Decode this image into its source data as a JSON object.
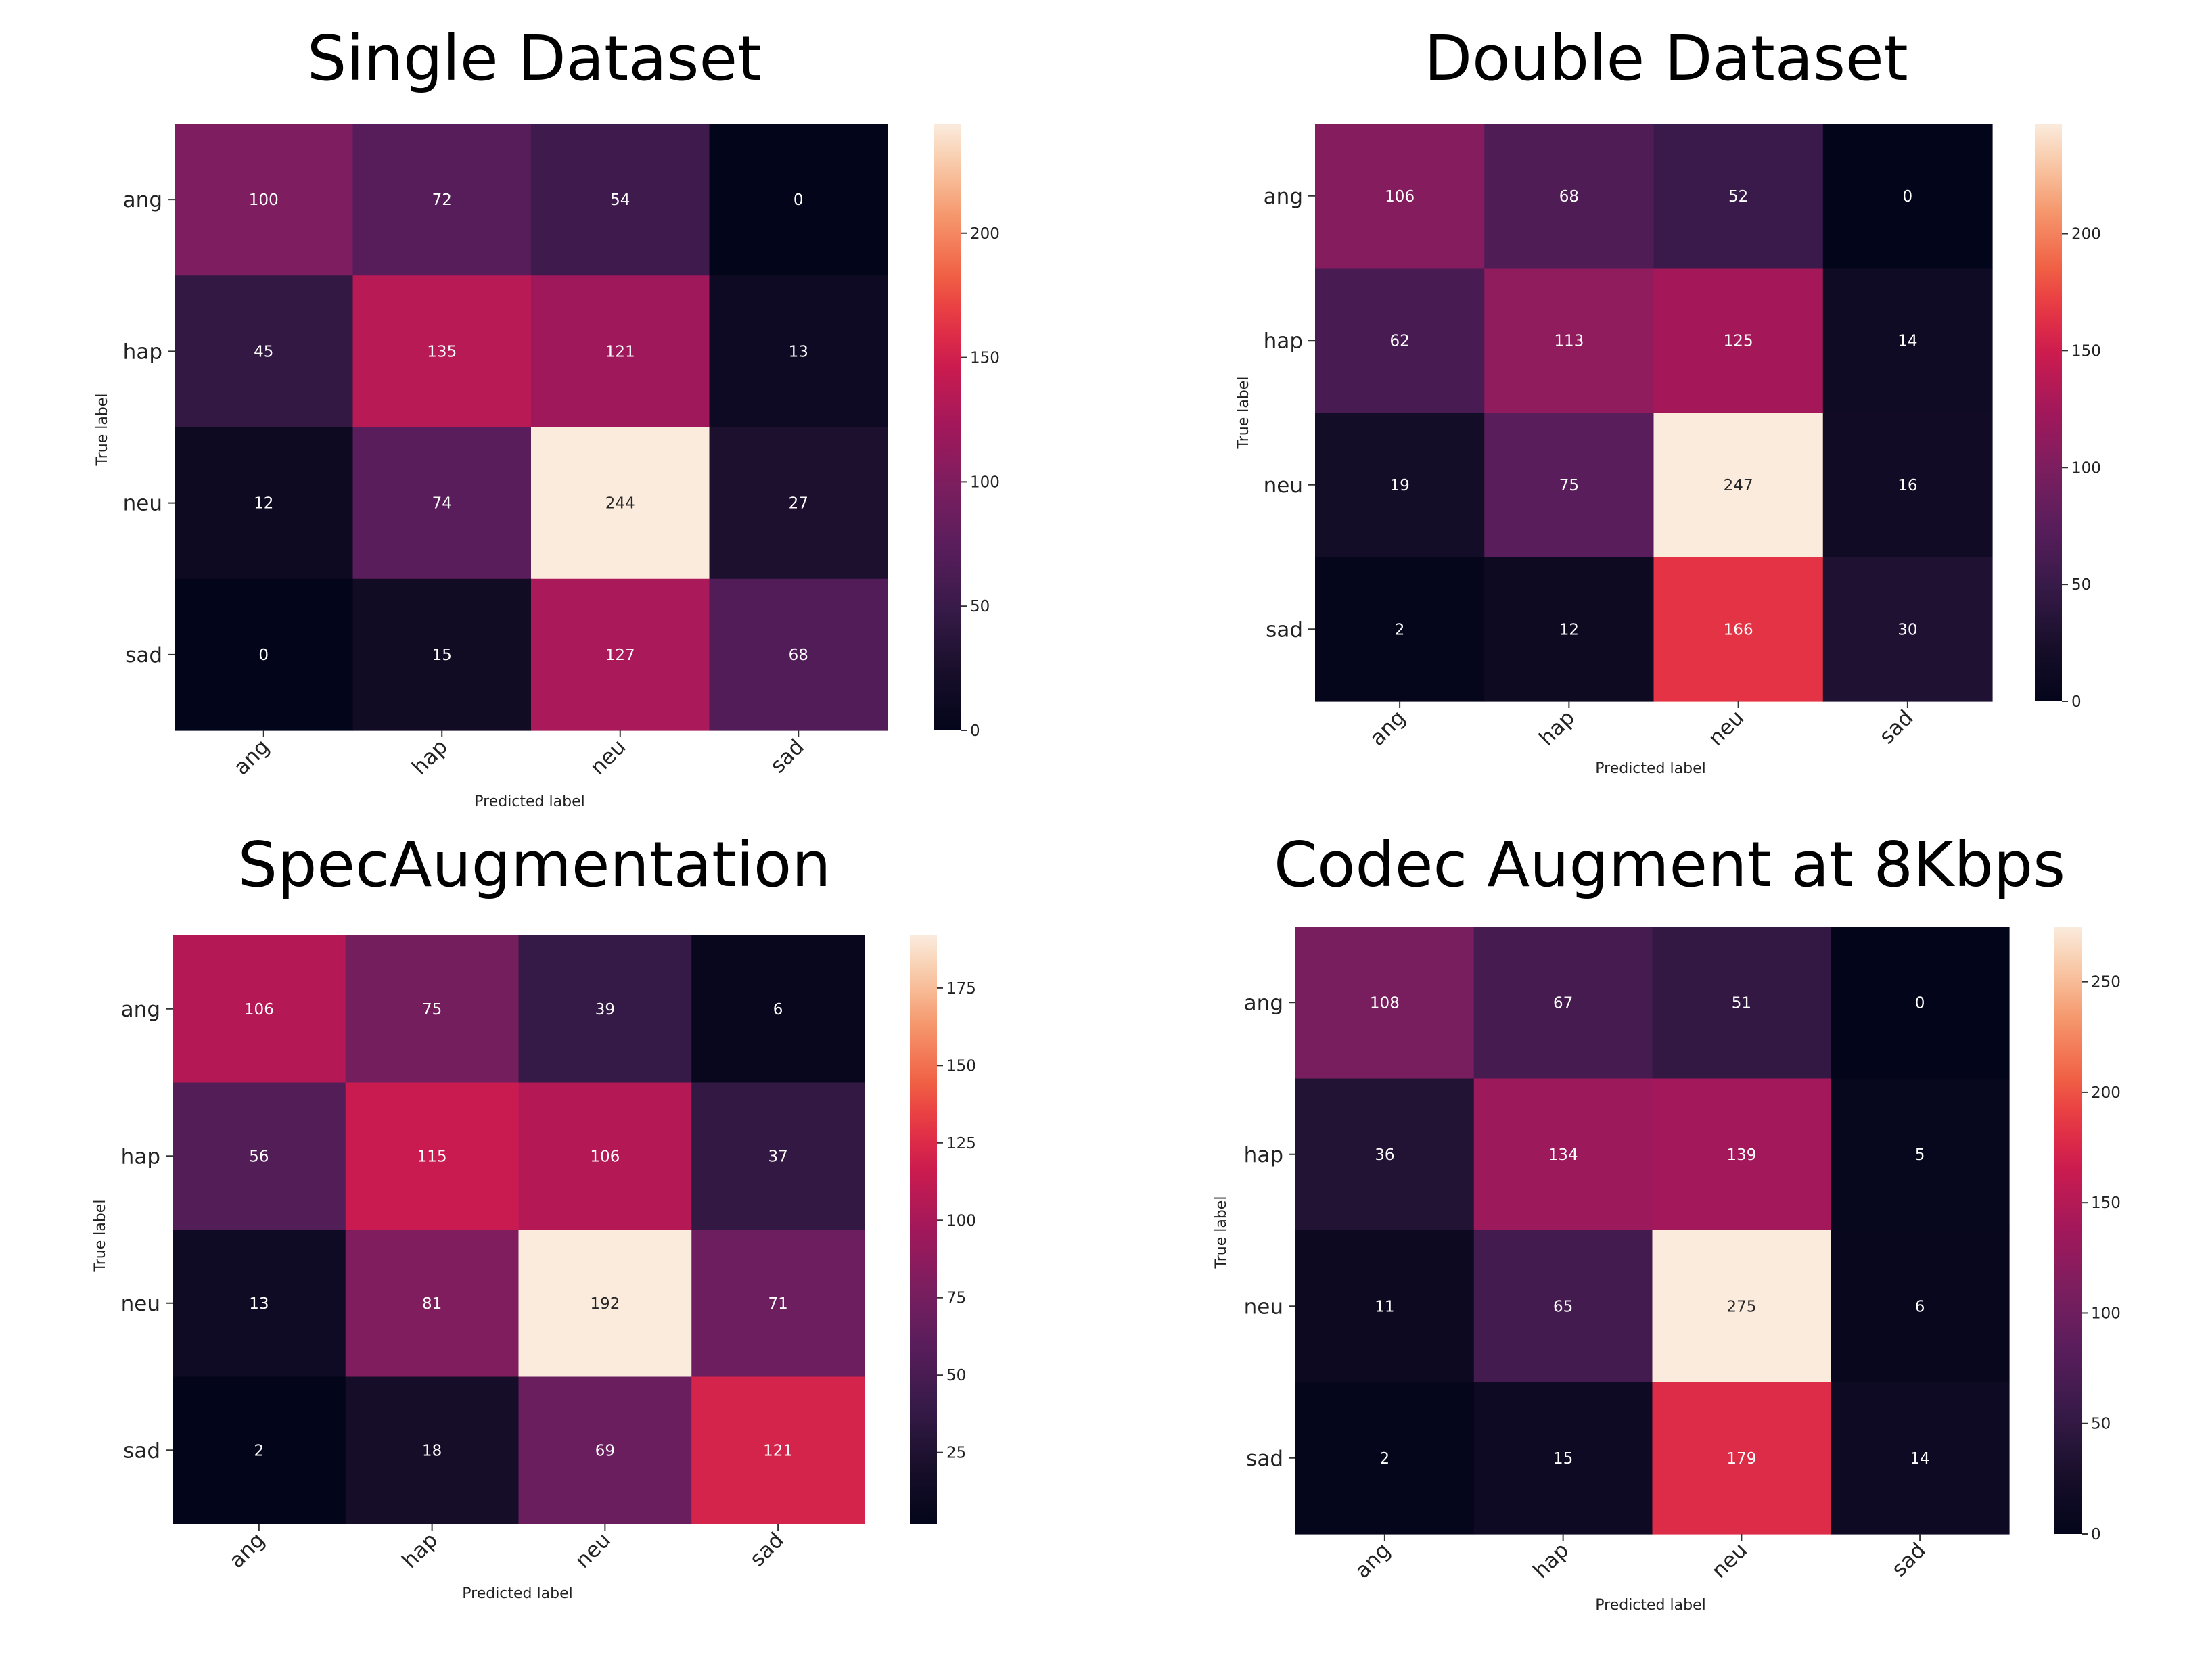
{
  "chart_data": [
    {
      "type": "heatmap",
      "title": "Single Dataset",
      "xlabel": "Predicted label",
      "ylabel": "True label",
      "categories": [
        "ang",
        "hap",
        "neu",
        "sad"
      ],
      "matrix": [
        [
          100,
          72,
          54,
          0
        ],
        [
          45,
          135,
          121,
          13
        ],
        [
          12,
          74,
          244,
          27
        ],
        [
          0,
          15,
          127,
          68
        ]
      ],
      "colorbar": {
        "min": 0,
        "max": 244,
        "ticks": [
          0,
          50,
          100,
          150,
          200
        ]
      }
    },
    {
      "type": "heatmap",
      "title": "Double Dataset",
      "xlabel": "Predicted label",
      "ylabel": "True label",
      "categories": [
        "ang",
        "hap",
        "neu",
        "sad"
      ],
      "matrix": [
        [
          106,
          68,
          52,
          0
        ],
        [
          62,
          113,
          125,
          14
        ],
        [
          19,
          75,
          247,
          16
        ],
        [
          2,
          12,
          166,
          30
        ]
      ],
      "colorbar": {
        "min": 0,
        "max": 247,
        "ticks": [
          0,
          50,
          100,
          150,
          200
        ]
      }
    },
    {
      "type": "heatmap",
      "title": "SpecAugmentation",
      "xlabel": "Predicted label",
      "ylabel": "True label",
      "categories": [
        "ang",
        "hap",
        "neu",
        "sad"
      ],
      "matrix": [
        [
          106,
          75,
          39,
          6
        ],
        [
          56,
          115,
          106,
          37
        ],
        [
          13,
          81,
          192,
          71
        ],
        [
          2,
          18,
          69,
          121
        ]
      ],
      "colorbar": {
        "min": 2,
        "max": 192,
        "ticks": [
          25,
          50,
          75,
          100,
          125,
          150,
          175
        ]
      }
    },
    {
      "type": "heatmap",
      "title": "Codec Augment at 8Kbps",
      "xlabel": "Predicted label",
      "ylabel": "True label",
      "categories": [
        "ang",
        "hap",
        "neu",
        "sad"
      ],
      "matrix": [
        [
          108,
          67,
          51,
          0
        ],
        [
          36,
          134,
          139,
          5
        ],
        [
          11,
          65,
          275,
          6
        ],
        [
          2,
          15,
          179,
          14
        ]
      ],
      "colorbar": {
        "min": 0,
        "max": 275,
        "ticks": [
          0,
          50,
          100,
          150,
          200,
          250
        ]
      }
    }
  ]
}
